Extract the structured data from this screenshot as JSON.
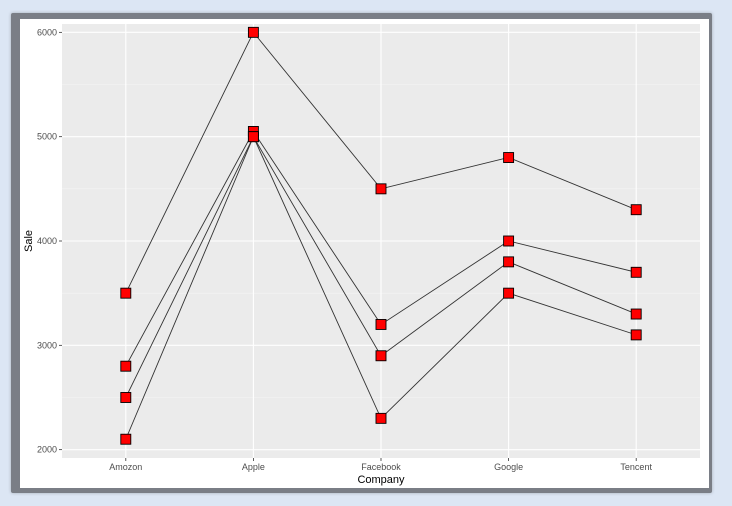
{
  "chart_data": {
    "type": "line",
    "categories": [
      "Amozon",
      "Apple",
      "Facebook",
      "Google",
      "Tencent"
    ],
    "series": [
      {
        "values": [
          3500,
          6000,
          4500,
          4800,
          4300
        ]
      },
      {
        "values": [
          2800,
          5050,
          3200,
          4000,
          3700
        ]
      },
      {
        "values": [
          2500,
          5000,
          2900,
          3800,
          3300
        ]
      },
      {
        "values": [
          2100,
          5000,
          2300,
          3500,
          3100
        ]
      }
    ],
    "xlabel": "Company",
    "ylabel": "Sale",
    "ylim": [
      1920,
      6080
    ],
    "yticks": [
      2000,
      3000,
      4000,
      5000,
      6000
    ],
    "ytick_labels": [
      "2000",
      "3000",
      "4000",
      "5000",
      "6000"
    ],
    "grid": true,
    "colors": {
      "panel_bg": "#ebebeb",
      "grid_major": "#ffffff",
      "grid_minor": "#f5f5f5",
      "line": "#333333",
      "marker_fill": "#ff0000",
      "marker_stroke": "#000000"
    },
    "marker": "square"
  }
}
